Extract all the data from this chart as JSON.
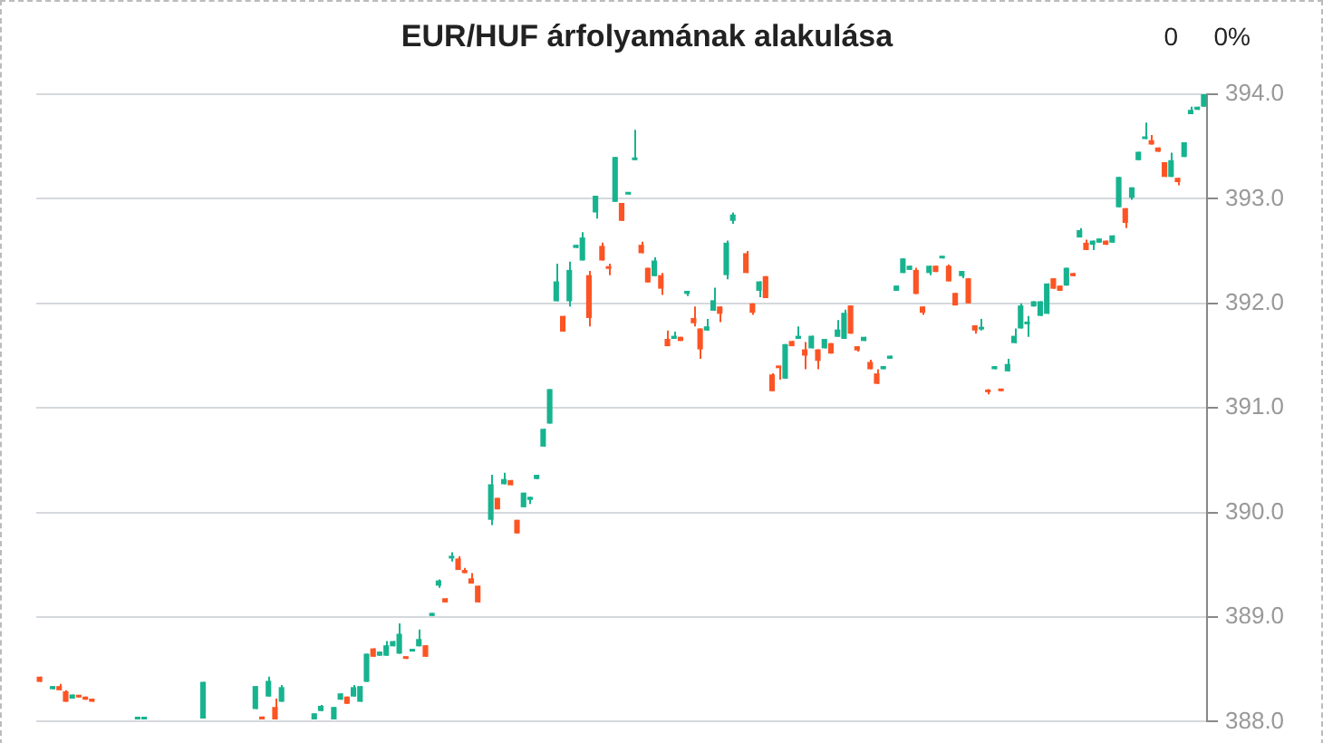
{
  "chart_data": {
    "type": "candlestick",
    "title": "EUR/HUF árfolyamának alakulása",
    "annotations": [
      "0",
      "0%"
    ],
    "categories": [
      null,
      null,
      null,
      null,
      null,
      null,
      null,
      null,
      null,
      null,
      null,
      null,
      null,
      null,
      null,
      null,
      null,
      null,
      null,
      null,
      null,
      null,
      null,
      null,
      null,
      null,
      null,
      null,
      null,
      null,
      null,
      null,
      null,
      null,
      null,
      null,
      null,
      null,
      null,
      null,
      null,
      null,
      null,
      null,
      null,
      null,
      null,
      null,
      null,
      null,
      null,
      null,
      null,
      null,
      null,
      null,
      null,
      null,
      null,
      null,
      null,
      null,
      null,
      null,
      null,
      null,
      null,
      null,
      null,
      null,
      null,
      null,
      null,
      null,
      null,
      null,
      null,
      null,
      null,
      null,
      null,
      null,
      null,
      null,
      null,
      null,
      null,
      null,
      null,
      null,
      null,
      null,
      null,
      null,
      null,
      null,
      null,
      null,
      null,
      null,
      null,
      null,
      null,
      null,
      null,
      null,
      null,
      null,
      null,
      null,
      null,
      null,
      null,
      null,
      null,
      null,
      null,
      null,
      null,
      null,
      null,
      null,
      null,
      null,
      null,
      null,
      null,
      null,
      null,
      null,
      null,
      null,
      null,
      null,
      null,
      null,
      null,
      null,
      null,
      null,
      null,
      null,
      null,
      null,
      null,
      null,
      null,
      null,
      null,
      null,
      null,
      null,
      null,
      null,
      null,
      null,
      null,
      null,
      null,
      null,
      null,
      null,
      null,
      null,
      null,
      null,
      null,
      null,
      null,
      null,
      null,
      null,
      null,
      null,
      null,
      null,
      null,
      null,
      null
    ],
    "ohlc": [
      [
        388.43,
        388.43,
        388.38,
        388.38
      ],
      null,
      [
        388.31,
        388.34,
        388.31,
        388.34
      ],
      [
        388.34,
        388.36,
        388.3,
        388.3
      ],
      [
        388.29,
        388.3,
        388.19,
        388.19
      ],
      [
        388.22,
        388.26,
        388.22,
        388.26
      ],
      [
        388.24,
        388.24,
        388.23,
        388.23
      ],
      [
        388.24,
        388.24,
        388.21,
        388.21
      ],
      [
        388.22,
        388.22,
        388.19,
        388.19
      ],
      null,
      null,
      null,
      null,
      null,
      null,
      [
        388.02,
        388.03,
        388.02,
        388.03
      ],
      [
        388.02,
        388.03,
        388.02,
        388.03
      ],
      null,
      null,
      null,
      null,
      null,
      null,
      null,
      null,
      [
        388.03,
        388.38,
        388.03,
        388.38
      ],
      null,
      null,
      null,
      null,
      null,
      null,
      null,
      [
        388.12,
        388.34,
        388.12,
        388.34
      ],
      [
        388.05,
        388.05,
        388.02,
        388.02
      ],
      [
        388.24,
        388.43,
        388.24,
        388.39
      ],
      [
        388.14,
        388.22,
        388.02,
        388.02
      ],
      [
        388.19,
        388.35,
        388.19,
        388.33
      ],
      null,
      null,
      null,
      null,
      [
        388.02,
        388.08,
        388.02,
        388.08
      ],
      [
        388.1,
        388.16,
        388.1,
        388.15
      ],
      null,
      [
        388.02,
        388.14,
        388.02,
        388.14
      ],
      [
        388.21,
        388.27,
        388.21,
        388.27
      ],
      [
        388.24,
        388.24,
        388.17,
        388.17
      ],
      [
        388.24,
        388.35,
        388.24,
        388.33
      ],
      [
        388.19,
        388.34,
        388.19,
        388.34
      ],
      [
        388.38,
        388.65,
        388.38,
        388.65
      ],
      [
        388.7,
        388.7,
        388.62,
        388.62
      ],
      [
        388.63,
        388.67,
        388.63,
        388.67
      ],
      [
        388.63,
        388.77,
        388.63,
        388.73
      ],
      [
        388.72,
        388.77,
        388.72,
        388.77
      ],
      [
        388.65,
        388.94,
        388.65,
        388.84
      ],
      [
        388.61,
        388.61,
        388.6,
        388.6
      ],
      [
        388.67,
        388.68,
        388.67,
        388.68
      ],
      [
        388.72,
        388.88,
        388.72,
        388.79
      ],
      [
        388.73,
        388.73,
        388.62,
        388.62
      ],
      [
        389.01,
        389.04,
        389.01,
        389.04
      ],
      [
        389.3,
        389.36,
        389.28,
        389.35
      ],
      [
        389.18,
        389.18,
        389.14,
        389.14
      ],
      [
        389.56,
        389.62,
        389.53,
        389.57
      ],
      [
        389.56,
        389.58,
        389.45,
        389.45
      ],
      [
        389.45,
        389.47,
        389.42,
        389.42
      ],
      [
        389.37,
        389.42,
        389.32,
        389.32
      ],
      [
        389.3,
        389.3,
        389.14,
        389.14
      ],
      null,
      [
        389.93,
        390.36,
        389.88,
        390.27
      ],
      [
        390.14,
        390.14,
        390.03,
        390.03
      ],
      [
        390.27,
        390.38,
        390.27,
        390.32
      ],
      [
        390.31,
        390.31,
        390.26,
        390.26
      ],
      [
        389.93,
        389.93,
        389.8,
        389.8
      ],
      [
        390.05,
        390.19,
        390.05,
        390.19
      ],
      [
        390.12,
        390.15,
        390.08,
        390.15
      ],
      [
        390.32,
        390.36,
        390.32,
        390.36
      ],
      [
        390.63,
        390.8,
        390.63,
        390.8
      ],
      [
        390.85,
        391.18,
        390.85,
        391.18
      ],
      [
        392.02,
        392.38,
        392.02,
        392.21
      ],
      [
        391.88,
        391.88,
        391.73,
        391.73
      ],
      [
        392.02,
        392.4,
        391.97,
        392.32
      ],
      [
        392.53,
        392.56,
        392.53,
        392.56
      ],
      [
        392.41,
        392.68,
        392.41,
        392.63
      ],
      [
        392.27,
        392.31,
        391.78,
        391.86
      ],
      [
        392.87,
        393.03,
        392.81,
        393.03
      ],
      [
        392.55,
        392.58,
        392.41,
        392.41
      ],
      [
        392.34,
        392.38,
        392.27,
        392.33
      ],
      [
        392.97,
        393.4,
        392.97,
        393.4
      ],
      [
        392.96,
        392.96,
        392.79,
        392.79
      ],
      [
        393.04,
        393.06,
        393.04,
        393.06
      ],
      [
        393.37,
        393.66,
        393.37,
        393.39
      ],
      [
        392.56,
        392.59,
        392.48,
        392.48
      ],
      [
        392.34,
        392.34,
        392.2,
        392.2
      ],
      [
        392.26,
        392.44,
        392.26,
        392.41
      ],
      [
        392.27,
        392.29,
        392.08,
        392.14
      ],
      [
        391.66,
        391.74,
        391.59,
        391.59
      ],
      [
        391.66,
        391.73,
        391.66,
        391.69
      ],
      [
        391.68,
        391.68,
        391.64,
        391.64
      ],
      [
        392.09,
        392.12,
        392.07,
        392.12
      ],
      [
        391.86,
        391.97,
        391.78,
        391.81
      ],
      [
        391.76,
        391.76,
        391.47,
        391.56
      ],
      [
        391.74,
        391.85,
        391.74,
        391.78
      ],
      [
        391.93,
        392.15,
        391.93,
        392.03
      ],
      [
        391.97,
        391.97,
        391.82,
        391.9
      ],
      [
        392.27,
        392.6,
        392.23,
        392.58
      ],
      [
        392.79,
        392.87,
        392.76,
        392.85
      ],
      null,
      [
        392.48,
        392.5,
        392.29,
        392.29
      ],
      [
        392.0,
        392.0,
        391.89,
        391.91
      ],
      [
        392.12,
        392.21,
        392.06,
        392.21
      ],
      [
        392.26,
        392.26,
        392.05,
        392.05
      ],
      [
        391.32,
        391.33,
        391.16,
        391.16
      ],
      [
        391.39,
        391.39,
        391.27,
        391.38
      ],
      [
        391.28,
        391.61,
        391.28,
        391.61
      ],
      [
        391.64,
        391.64,
        391.59,
        391.59
      ],
      [
        391.66,
        391.78,
        391.66,
        391.69
      ],
      [
        391.56,
        391.63,
        391.37,
        391.5
      ],
      [
        391.57,
        391.69,
        391.57,
        391.69
      ],
      [
        391.56,
        391.56,
        391.37,
        391.45
      ],
      [
        391.57,
        391.66,
        391.57,
        391.66
      ],
      [
        391.62,
        391.62,
        391.52,
        391.52
      ],
      [
        391.68,
        391.84,
        391.68,
        391.75
      ],
      [
        391.66,
        391.94,
        391.66,
        391.91
      ],
      [
        391.98,
        391.98,
        391.71,
        391.71
      ],
      [
        391.59,
        391.59,
        391.54,
        391.55
      ],
      [
        391.64,
        391.68,
        391.64,
        391.68
      ],
      [
        391.44,
        391.46,
        391.37,
        391.37
      ],
      [
        391.33,
        391.37,
        391.23,
        391.23
      ],
      [
        391.37,
        391.4,
        391.37,
        391.4
      ],
      [
        391.47,
        391.5,
        391.47,
        391.5
      ],
      [
        392.12,
        392.17,
        392.12,
        392.17
      ],
      [
        392.29,
        392.43,
        392.29,
        392.43
      ],
      [
        392.32,
        392.36,
        392.32,
        392.36
      ],
      [
        392.32,
        392.34,
        392.09,
        392.09
      ],
      [
        391.97,
        391.97,
        391.89,
        391.91
      ],
      [
        392.29,
        392.36,
        392.27,
        392.36
      ],
      [
        392.36,
        392.36,
        392.3,
        392.3
      ],
      [
        392.43,
        392.44,
        392.43,
        392.44
      ],
      [
        392.36,
        392.37,
        392.21,
        392.21
      ],
      [
        392.1,
        392.1,
        391.98,
        391.98
      ],
      [
        392.26,
        392.31,
        392.24,
        392.31
      ],
      [
        392.24,
        392.24,
        392.0,
        392.0
      ],
      [
        391.79,
        391.79,
        391.71,
        391.74
      ],
      [
        391.75,
        391.85,
        391.74,
        391.76
      ],
      [
        391.17,
        391.18,
        391.13,
        391.15
      ],
      [
        391.37,
        391.4,
        391.37,
        391.4
      ],
      [
        391.18,
        391.18,
        391.16,
        391.16
      ],
      [
        391.35,
        391.47,
        391.35,
        391.42
      ],
      [
        391.62,
        391.76,
        391.62,
        391.69
      ],
      [
        391.76,
        392.0,
        391.76,
        391.98
      ],
      [
        391.8,
        391.88,
        391.68,
        391.82
      ],
      [
        391.97,
        392.02,
        391.97,
        392.02
      ],
      [
        391.88,
        392.02,
        391.88,
        392.02
      ],
      [
        391.9,
        392.19,
        391.9,
        392.19
      ],
      [
        392.24,
        392.24,
        392.14,
        392.14
      ],
      [
        392.17,
        392.17,
        392.12,
        392.12
      ],
      [
        392.17,
        392.34,
        392.17,
        392.34
      ],
      [
        392.29,
        392.29,
        392.26,
        392.26
      ],
      [
        392.63,
        392.72,
        392.63,
        392.7
      ],
      [
        392.58,
        392.61,
        392.51,
        392.51
      ],
      [
        392.56,
        392.6,
        392.51,
        392.6
      ],
      [
        392.58,
        392.62,
        392.58,
        392.62
      ],
      [
        392.6,
        392.6,
        392.56,
        392.56
      ],
      [
        392.58,
        392.65,
        392.58,
        392.65
      ],
      [
        392.92,
        393.21,
        392.92,
        393.21
      ],
      [
        392.91,
        392.91,
        392.72,
        392.77
      ],
      [
        393.01,
        393.11,
        392.99,
        393.11
      ],
      [
        393.37,
        393.45,
        393.37,
        393.45
      ],
      [
        393.57,
        393.73,
        393.57,
        393.59
      ],
      [
        393.56,
        393.61,
        393.52,
        393.52
      ],
      [
        393.49,
        393.49,
        393.45,
        393.45
      ],
      [
        393.35,
        393.35,
        393.21,
        393.21
      ],
      [
        393.21,
        393.44,
        393.21,
        393.37
      ],
      [
        393.2,
        393.2,
        393.13,
        393.16
      ],
      [
        393.4,
        393.54,
        393.4,
        393.54
      ],
      [
        393.81,
        393.88,
        393.81,
        393.85
      ],
      [
        393.85,
        393.88,
        393.85,
        393.88
      ],
      [
        393.88,
        394.0,
        393.88,
        394.0
      ]
    ],
    "colors": [
      "#fc5424",
      null,
      "#17b38f",
      "#fc5424",
      "#fc5424",
      "#17b38f",
      "#fc5424",
      "#fc5424",
      "#fc5424",
      null,
      null,
      null,
      null,
      null,
      null,
      "#17b38f",
      "#17b38f",
      null,
      null,
      null,
      null,
      null,
      null,
      null,
      null,
      "#17b38f",
      null,
      null,
      null,
      null,
      null,
      null,
      null,
      "#17b38f",
      "#fc5424",
      "#17b38f",
      "#fc5424",
      "#17b38f",
      null,
      null,
      null,
      null,
      "#17b38f",
      "#17b38f",
      null,
      "#17b38f",
      "#17b38f",
      "#fc5424",
      "#17b38f",
      "#17b38f",
      "#17b38f",
      "#fc5424",
      "#17b38f",
      "#17b38f",
      "#17b38f",
      "#17b38f",
      "#fc5424",
      "#17b38f",
      "#17b38f",
      "#fc5424",
      "#17b38f",
      "#17b38f",
      "#fc5424",
      "#17b38f",
      "#fc5424",
      "#fc5424",
      "#fc5424",
      "#fc5424",
      null,
      "#17b38f",
      "#fc5424",
      "#17b38f",
      "#fc5424",
      "#fc5424",
      "#17b38f",
      "#17b38f",
      "#17b38f",
      "#17b38f",
      "#17b38f",
      "#17b38f",
      "#fc5424",
      "#17b38f",
      "#17b38f",
      "#17b38f",
      "#fc5424",
      "#17b38f",
      "#fc5424",
      "#fc5424",
      "#17b38f",
      "#fc5424",
      "#17b38f",
      "#17b38f",
      "#fc5424",
      "#fc5424",
      "#17b38f",
      "#fc5424",
      "#fc5424",
      "#17b38f",
      "#fc5424",
      "#17b38f",
      "#fc5424",
      "#fc5424",
      "#17b38f",
      "#17b38f",
      "#fc5424",
      "#17b38f",
      "#17b38f",
      null,
      "#fc5424",
      "#fc5424",
      "#17b38f",
      "#fc5424",
      "#fc5424",
      "#fc5424",
      "#17b38f",
      "#fc5424",
      "#17b38f",
      "#fc5424",
      "#17b38f",
      "#fc5424",
      "#17b38f",
      "#fc5424",
      "#17b38f",
      "#17b38f",
      "#fc5424",
      "#fc5424",
      "#17b38f",
      "#fc5424",
      "#fc5424",
      "#17b38f",
      "#17b38f",
      "#17b38f",
      "#17b38f",
      "#17b38f",
      "#fc5424",
      "#fc5424",
      "#17b38f",
      "#fc5424",
      "#17b38f",
      "#fc5424",
      "#fc5424",
      "#17b38f",
      "#fc5424",
      "#fc5424",
      "#17b38f",
      "#fc5424",
      "#17b38f",
      "#fc5424",
      "#17b38f",
      "#17b38f",
      "#17b38f",
      "#17b38f",
      "#17b38f",
      "#17b38f",
      "#17b38f",
      "#fc5424",
      "#fc5424",
      "#17b38f",
      "#fc5424",
      "#17b38f",
      "#fc5424",
      "#17b38f",
      "#17b38f",
      "#fc5424",
      "#17b38f",
      "#17b38f",
      "#fc5424",
      "#17b38f",
      "#17b38f",
      "#17b38f",
      "#fc5424",
      "#fc5424",
      "#fc5424",
      "#17b38f",
      "#fc5424",
      "#17b38f",
      "#17b38f",
      "#17b38f",
      "#17b38f"
    ],
    "ylim": [
      388,
      394
    ],
    "yticks": [
      {
        "value": 388,
        "label": "388.0"
      },
      {
        "value": 389,
        "label": "389.0"
      },
      {
        "value": 390,
        "label": "390.0"
      },
      {
        "value": 391,
        "label": "391.0"
      },
      {
        "value": 392,
        "label": "392.0"
      },
      {
        "value": 393,
        "label": "393.0"
      },
      {
        "value": 394,
        "label": "394.0"
      }
    ],
    "grid": "y",
    "tick_labels": "y",
    "legend": false
  }
}
